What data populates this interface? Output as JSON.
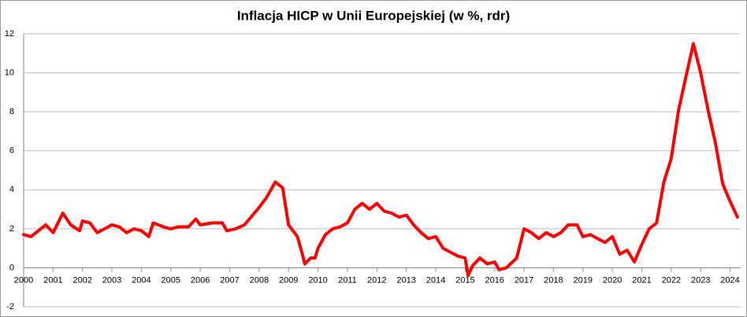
{
  "chart_data": {
    "type": "line",
    "title": "Inflacja HICP w Unii Europejskiej (w %, rdr)",
    "x": [
      2000.0,
      2000.25,
      2000.5,
      2000.75,
      2001.0,
      2001.33,
      2001.6,
      2001.9,
      2002.0,
      2002.25,
      2002.5,
      2002.75,
      2003.0,
      2003.25,
      2003.5,
      2003.75,
      2004.0,
      2004.25,
      2004.4,
      2004.75,
      2005.0,
      2005.25,
      2005.6,
      2005.85,
      2006.0,
      2006.4,
      2006.75,
      2006.9,
      2007.2,
      2007.5,
      2008.0,
      2008.25,
      2008.55,
      2008.8,
      2009.0,
      2009.3,
      2009.45,
      2009.55,
      2009.75,
      2009.9,
      2010.0,
      2010.25,
      2010.5,
      2010.75,
      2011.0,
      2011.25,
      2011.5,
      2011.75,
      2012.0,
      2012.25,
      2012.5,
      2012.75,
      2013.0,
      2013.25,
      2013.5,
      2013.75,
      2014.0,
      2014.25,
      2014.5,
      2014.75,
      2015.0,
      2015.1,
      2015.25,
      2015.5,
      2015.75,
      2016.0,
      2016.15,
      2016.4,
      2016.75,
      2017.0,
      2017.25,
      2017.5,
      2017.75,
      2018.0,
      2018.25,
      2018.5,
      2018.8,
      2019.0,
      2019.25,
      2019.5,
      2019.75,
      2020.0,
      2020.25,
      2020.5,
      2020.75,
      2021.0,
      2021.25,
      2021.5,
      2021.75,
      2022.0,
      2022.25,
      2022.5,
      2022.75,
      2023.0,
      2023.25,
      2023.5,
      2023.75,
      2024.0,
      2024.25
    ],
    "values": [
      1.7,
      1.6,
      1.9,
      2.2,
      1.8,
      2.8,
      2.2,
      1.9,
      2.4,
      2.3,
      1.8,
      2.0,
      2.2,
      2.1,
      1.8,
      2.0,
      1.9,
      1.6,
      2.3,
      2.1,
      2.0,
      2.1,
      2.1,
      2.5,
      2.2,
      2.3,
      2.3,
      1.9,
      2.0,
      2.2,
      3.1,
      3.6,
      4.4,
      4.1,
      2.2,
      1.6,
      0.8,
      0.2,
      0.5,
      0.5,
      1.0,
      1.7,
      2.0,
      2.1,
      2.3,
      3.0,
      3.3,
      3.0,
      3.3,
      2.9,
      2.8,
      2.6,
      2.7,
      2.2,
      1.8,
      1.5,
      1.6,
      1.0,
      0.8,
      0.6,
      0.5,
      -0.4,
      0.1,
      0.5,
      0.2,
      0.3,
      -0.1,
      0.0,
      0.5,
      2.0,
      1.8,
      1.5,
      1.8,
      1.6,
      1.8,
      2.2,
      2.2,
      1.6,
      1.7,
      1.5,
      1.3,
      1.6,
      0.7,
      0.9,
      0.3,
      1.2,
      2.0,
      2.3,
      4.4,
      5.6,
      8.1,
      9.8,
      11.5,
      10.0,
      8.1,
      6.4,
      4.3,
      3.4,
      2.6
    ],
    "color": "#ff0000",
    "xlim": [
      2000,
      2024.36
    ],
    "xticks": [
      2000,
      2001,
      2002,
      2003,
      2004,
      2005,
      2006,
      2007,
      2008,
      2009,
      2010,
      2011,
      2012,
      2013,
      2014,
      2015,
      2016,
      2017,
      2018,
      2019,
      2020,
      2021,
      2022,
      2023,
      2024
    ],
    "ylim": [
      -2,
      12
    ],
    "yticks": [
      -2,
      0,
      2,
      4,
      6,
      8,
      10,
      12
    ],
    "grid": true
  }
}
